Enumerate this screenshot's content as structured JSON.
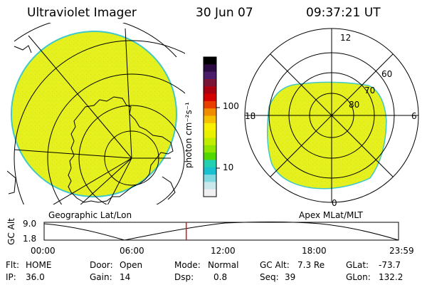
{
  "header": {
    "title": "Ultraviolet Imager",
    "date": "30 Jun 07",
    "time": "09:37:21 UT"
  },
  "colorbar": {
    "unit_label": "photon cm⁻²s⁻¹",
    "ticks": [
      "100",
      "10"
    ],
    "colors_top_to_bottom": [
      "#000000",
      "#2a0a40",
      "#4a1c6a",
      "#7a1436",
      "#a80010",
      "#d40000",
      "#e83e00",
      "#f08c00",
      "#f4c000",
      "#f8f000",
      "#e8f000",
      "#c0ec00",
      "#90e400",
      "#50d800",
      "#20d0b0",
      "#18c0d0",
      "#80d8e0",
      "#c8e8ec",
      "#f0f0f0"
    ]
  },
  "left_panel": {
    "label": "Geographic Lat/Lon",
    "fill_color": "#e6f01e",
    "edge_color": "#40c8c8"
  },
  "right_panel": {
    "label": "Apex MLat/MLT",
    "mlt_labels": [
      "12",
      "18",
      "6",
      "0"
    ],
    "mlat_labels": [
      "60",
      "70",
      "80"
    ],
    "fill_color": "#e6f01e"
  },
  "altitude_strip": {
    "axis_label": "GC Alt",
    "y_ticks": [
      "9.0",
      "1.8"
    ],
    "x_ticks": [
      "00:00",
      "06:00",
      "12:00",
      "18:00",
      "23:59"
    ],
    "current_time_fraction": 0.401
  },
  "info": {
    "row1": [
      {
        "label": "Flt:",
        "value": "HOME"
      },
      {
        "label": "Door:",
        "value": "Open"
      },
      {
        "label": "Mode:",
        "value": "Normal"
      },
      {
        "label": "GC Alt:",
        "value": "7.3 Re"
      },
      {
        "label": "GLat:",
        "value": "-73.7"
      }
    ],
    "row2": [
      {
        "label": "IP:",
        "value": "36.0"
      },
      {
        "label": "Gain:",
        "value": "14"
      },
      {
        "label": "Dsp:",
        "value": "0.8"
      },
      {
        "label": "Seq:",
        "value": "39"
      },
      {
        "label": "GLon:",
        "value": "132.2"
      }
    ]
  }
}
